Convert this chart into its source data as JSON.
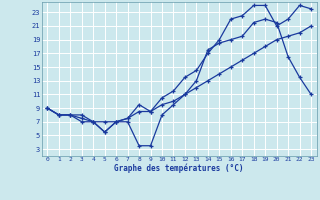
{
  "xlabel": "Graphe des températures (°C)",
  "bg_color": "#cce8ed",
  "line_color": "#1a3a9e",
  "grid_color": "#ffffff",
  "xlim": [
    -0.5,
    23.5
  ],
  "ylim": [
    2,
    24.5
  ],
  "xticks": [
    0,
    1,
    2,
    3,
    4,
    5,
    6,
    7,
    8,
    9,
    10,
    11,
    12,
    13,
    14,
    15,
    16,
    17,
    18,
    19,
    20,
    21,
    22,
    23
  ],
  "yticks": [
    3,
    5,
    7,
    9,
    11,
    13,
    15,
    17,
    19,
    21,
    23
  ],
  "line1_x": [
    0,
    1,
    2,
    3,
    4,
    5,
    6,
    7,
    8,
    9,
    10,
    11,
    12,
    13,
    14,
    15,
    16,
    17,
    18,
    19,
    20,
    21,
    22,
    23
  ],
  "line1_y": [
    9,
    8,
    8,
    8,
    7,
    7,
    7,
    7.5,
    8.5,
    8.5,
    9.5,
    10,
    11,
    12,
    13,
    14,
    15,
    16,
    17,
    18,
    19,
    19.5,
    20,
    21
  ],
  "line2_x": [
    0,
    1,
    2,
    3,
    4,
    5,
    6,
    7,
    8,
    9,
    10,
    11,
    12,
    13,
    14,
    15,
    16,
    17,
    18,
    19,
    20,
    21,
    22,
    23
  ],
  "line2_y": [
    9,
    8,
    8,
    7.5,
    7,
    5.5,
    7,
    7.5,
    9.5,
    8.5,
    10.5,
    11.5,
    13.5,
    14.5,
    17,
    19,
    22,
    22.5,
    24,
    24,
    21,
    22,
    24,
    23.5
  ],
  "line3_x": [
    0,
    1,
    2,
    3,
    4,
    5,
    6,
    7,
    8,
    9,
    10,
    11,
    12,
    13,
    14,
    15,
    16,
    17,
    18,
    19,
    20,
    21,
    22,
    23
  ],
  "line3_y": [
    9,
    8,
    8,
    7,
    7,
    5.5,
    7,
    7,
    3.5,
    3.5,
    8,
    9.5,
    11,
    13,
    17.5,
    18.5,
    19,
    19.5,
    21.5,
    22,
    21.5,
    16.5,
    13.5,
    11
  ]
}
